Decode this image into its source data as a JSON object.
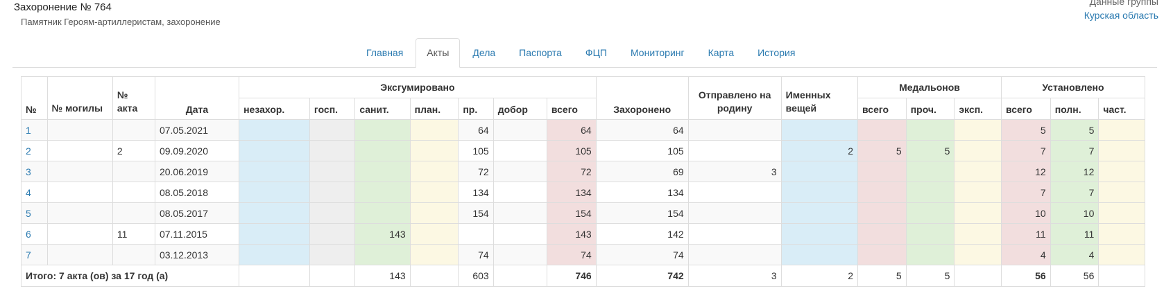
{
  "header": {
    "title": "Захоронение № 764",
    "subtitle": "Памятник Героям-артиллеристам, захоронение",
    "group_label": "Данные группы",
    "region_link": "Курская область"
  },
  "tabs": [
    {
      "label": "Главная",
      "active": false
    },
    {
      "label": "Акты",
      "active": true
    },
    {
      "label": "Дела",
      "active": false
    },
    {
      "label": "Паспорта",
      "active": false
    },
    {
      "label": "ФЦП",
      "active": false
    },
    {
      "label": "Мониторинг",
      "active": false
    },
    {
      "label": "Карта",
      "active": false
    },
    {
      "label": "История",
      "active": false
    }
  ],
  "table": {
    "group_headers": {
      "exhumed": "Эксгумировано",
      "medallions": "Медальонов",
      "installed": "Установлено"
    },
    "headers": {
      "num": "№",
      "grave_num": "№ могилы",
      "act_num": "№ акта",
      "date": "Дата",
      "ex_nezahor": "незахор.",
      "ex_gosp": "госп.",
      "ex_sanit": "санит.",
      "ex_plan": "план.",
      "ex_pr": "пр.",
      "ex_dobor": "добор",
      "ex_total": "всего",
      "buried": "Захоронено",
      "sent_home": "Отправлено на родину",
      "named_items": "Именных вещей",
      "med_total": "всего",
      "med_other": "проч.",
      "med_exp": "эксп.",
      "inst_total": "всего",
      "inst_full": "полн.",
      "inst_part": "част."
    },
    "rows": [
      [
        "1",
        "",
        "",
        "07.05.2021",
        "",
        "",
        "",
        "",
        "64",
        "",
        "64",
        "64",
        "",
        "",
        "",
        "",
        "",
        "5",
        "5",
        ""
      ],
      [
        "2",
        "",
        "2",
        "09.09.2020",
        "",
        "",
        "",
        "",
        "105",
        "",
        "105",
        "105",
        "",
        "2",
        "5",
        "5",
        "",
        "7",
        "7",
        ""
      ],
      [
        "3",
        "",
        "",
        "20.06.2019",
        "",
        "",
        "",
        "",
        "72",
        "",
        "72",
        "69",
        "3",
        "",
        "",
        "",
        "",
        "12",
        "12",
        ""
      ],
      [
        "4",
        "",
        "",
        "08.05.2018",
        "",
        "",
        "",
        "",
        "134",
        "",
        "134",
        "134",
        "",
        "",
        "",
        "",
        "",
        "7",
        "7",
        ""
      ],
      [
        "5",
        "",
        "",
        "08.05.2017",
        "",
        "",
        "",
        "",
        "154",
        "",
        "154",
        "154",
        "",
        "",
        "",
        "",
        "",
        "10",
        "10",
        ""
      ],
      [
        "6",
        "",
        "11",
        "07.11.2015",
        "",
        "",
        "143",
        "",
        "",
        "",
        "143",
        "142",
        "",
        "",
        "",
        "",
        "",
        "11",
        "11",
        ""
      ],
      [
        "7",
        "",
        "",
        "03.12.2013",
        "",
        "",
        "",
        "",
        "74",
        "",
        "74",
        "74",
        "",
        "",
        "",
        "",
        "",
        "4",
        "4",
        ""
      ]
    ],
    "totals": {
      "label": "Итого: 7 акта (ов) за 17 год (а)",
      "values": [
        "",
        "",
        "143",
        "",
        "603",
        "",
        "746",
        "742",
        "3",
        "2",
        "5",
        "5",
        "",
        "56",
        "56",
        ""
      ]
    }
  }
}
